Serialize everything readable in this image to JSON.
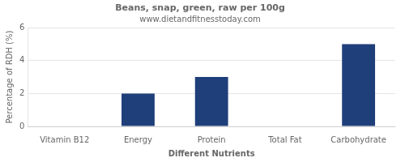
{
  "chart_data": {
    "type": "bar",
    "title": "Beans, snap, green, raw per 100g",
    "subtitle": "www.dietandfitnesstoday.com",
    "xlabel": "Different Nutrients",
    "ylabel": "Percentage of RDH (%)",
    "categories": [
      "Vitamin B12",
      "Energy",
      "Protein",
      "Total Fat",
      "Carbohydrate"
    ],
    "values": [
      0,
      2.0,
      3.0,
      0,
      5.0
    ],
    "color": "#1f3f7a",
    "ylim": [
      0,
      6
    ],
    "yticks": [
      0,
      2,
      4,
      6
    ],
    "grid": true
  }
}
